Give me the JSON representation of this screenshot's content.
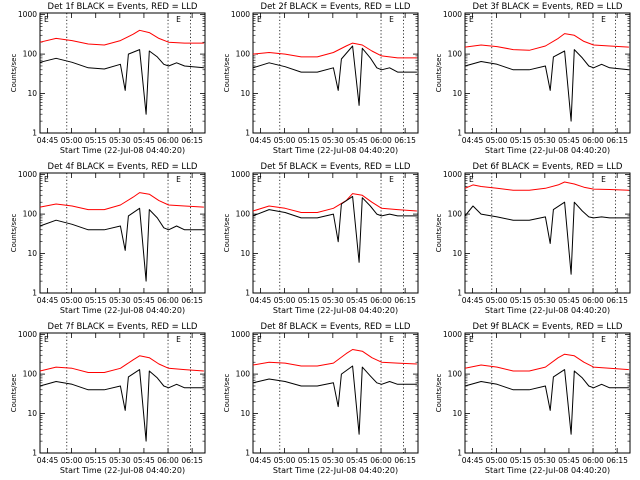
{
  "chart_data": {
    "type": "line",
    "shared": {
      "xlabel": "Start Time (22-Jul-08 04:40:20)",
      "ylabel": "Counts/sec",
      "x_ticks": [
        "04:45",
        "05:00",
        "05:15",
        "05:30",
        "05:45",
        "06:00",
        "06:15"
      ],
      "y_ticks": [
        "1",
        "10",
        "100",
        "1000"
      ],
      "y_scale": "log",
      "ylim": [
        1,
        1100
      ],
      "xlim": [
        "04:40:20",
        "06:23"
      ],
      "dotted_vlines": [
        "04:57",
        "06:00",
        "06:14"
      ],
      "marker_labels": [
        "E",
        "E"
      ],
      "series_colors": {
        "events": "#000000",
        "lld": "#ff0000"
      }
    },
    "panels": [
      {
        "title": "Det 1f BLACK = Events, RED = LLD",
        "events": [
          [
            0,
            62
          ],
          [
            10,
            78
          ],
          [
            20,
            62
          ],
          [
            30,
            45
          ],
          [
            40,
            42
          ],
          [
            50,
            55
          ],
          [
            53,
            12
          ],
          [
            55,
            100
          ],
          [
            62,
            130
          ],
          [
            66,
            3
          ],
          [
            68,
            120
          ],
          [
            73,
            85
          ],
          [
            77,
            55
          ],
          [
            80,
            50
          ],
          [
            85,
            60
          ],
          [
            90,
            50
          ],
          [
            102,
            45
          ]
        ],
        "lld": [
          [
            0,
            200
          ],
          [
            10,
            250
          ],
          [
            20,
            220
          ],
          [
            30,
            180
          ],
          [
            40,
            170
          ],
          [
            50,
            220
          ],
          [
            58,
            320
          ],
          [
            62,
            400
          ],
          [
            68,
            350
          ],
          [
            74,
            250
          ],
          [
            80,
            200
          ],
          [
            90,
            190
          ],
          [
            102,
            190
          ]
        ]
      },
      {
        "title": "Det 2f BLACK = Events, RED = LLD",
        "events": [
          [
            0,
            45
          ],
          [
            10,
            60
          ],
          [
            20,
            48
          ],
          [
            30,
            35
          ],
          [
            40,
            35
          ],
          [
            50,
            45
          ],
          [
            53,
            12
          ],
          [
            55,
            75
          ],
          [
            62,
            160
          ],
          [
            66,
            5
          ],
          [
            68,
            140
          ],
          [
            73,
            80
          ],
          [
            77,
            45
          ],
          [
            80,
            40
          ],
          [
            85,
            45
          ],
          [
            90,
            35
          ],
          [
            102,
            35
          ]
        ],
        "lld": [
          [
            0,
            100
          ],
          [
            10,
            110
          ],
          [
            20,
            100
          ],
          [
            30,
            85
          ],
          [
            40,
            85
          ],
          [
            50,
            110
          ],
          [
            58,
            160
          ],
          [
            62,
            190
          ],
          [
            68,
            170
          ],
          [
            74,
            120
          ],
          [
            80,
            90
          ],
          [
            90,
            80
          ],
          [
            102,
            80
          ]
        ]
      },
      {
        "title": "Det 3f BLACK = Events, RED = LLD",
        "events": [
          [
            0,
            50
          ],
          [
            10,
            65
          ],
          [
            20,
            55
          ],
          [
            30,
            40
          ],
          [
            40,
            40
          ],
          [
            50,
            50
          ],
          [
            53,
            12
          ],
          [
            55,
            85
          ],
          [
            62,
            120
          ],
          [
            66,
            2
          ],
          [
            68,
            130
          ],
          [
            73,
            80
          ],
          [
            77,
            50
          ],
          [
            80,
            45
          ],
          [
            85,
            55
          ],
          [
            90,
            45
          ],
          [
            102,
            40
          ]
        ],
        "lld": [
          [
            0,
            150
          ],
          [
            10,
            170
          ],
          [
            20,
            155
          ],
          [
            30,
            130
          ],
          [
            40,
            125
          ],
          [
            50,
            160
          ],
          [
            58,
            250
          ],
          [
            62,
            330
          ],
          [
            68,
            300
          ],
          [
            74,
            210
          ],
          [
            80,
            170
          ],
          [
            90,
            160
          ],
          [
            102,
            150
          ]
        ]
      },
      {
        "title": "Det 4f BLACK = Events, RED = LLD",
        "events": [
          [
            0,
            50
          ],
          [
            10,
            70
          ],
          [
            20,
            55
          ],
          [
            30,
            40
          ],
          [
            40,
            40
          ],
          [
            50,
            50
          ],
          [
            53,
            12
          ],
          [
            55,
            90
          ],
          [
            62,
            140
          ],
          [
            66,
            2
          ],
          [
            68,
            130
          ],
          [
            73,
            80
          ],
          [
            77,
            45
          ],
          [
            80,
            40
          ],
          [
            85,
            50
          ],
          [
            90,
            40
          ],
          [
            102,
            40
          ]
        ],
        "lld": [
          [
            0,
            150
          ],
          [
            10,
            180
          ],
          [
            20,
            160
          ],
          [
            30,
            130
          ],
          [
            40,
            130
          ],
          [
            50,
            170
          ],
          [
            58,
            270
          ],
          [
            62,
            350
          ],
          [
            68,
            320
          ],
          [
            74,
            220
          ],
          [
            80,
            170
          ],
          [
            90,
            160
          ],
          [
            102,
            150
          ]
        ]
      },
      {
        "title": "Det 5f BLACK = Events, RED = LLD",
        "events": [
          [
            0,
            90
          ],
          [
            10,
            130
          ],
          [
            20,
            110
          ],
          [
            30,
            80
          ],
          [
            40,
            80
          ],
          [
            50,
            100
          ],
          [
            53,
            20
          ],
          [
            55,
            180
          ],
          [
            62,
            280
          ],
          [
            66,
            6
          ],
          [
            68,
            260
          ],
          [
            73,
            160
          ],
          [
            77,
            100
          ],
          [
            80,
            90
          ],
          [
            85,
            100
          ],
          [
            90,
            90
          ],
          [
            102,
            90
          ]
        ],
        "lld": [
          [
            0,
            120
          ],
          [
            10,
            160
          ],
          [
            20,
            140
          ],
          [
            30,
            110
          ],
          [
            40,
            110
          ],
          [
            50,
            140
          ],
          [
            58,
            220
          ],
          [
            62,
            330
          ],
          [
            68,
            300
          ],
          [
            74,
            200
          ],
          [
            80,
            140
          ],
          [
            90,
            130
          ],
          [
            102,
            120
          ]
        ]
      },
      {
        "title": "Det 6f BLACK = Events, RED = LLD",
        "events": [
          [
            0,
            90
          ],
          [
            5,
            160
          ],
          [
            10,
            100
          ],
          [
            20,
            85
          ],
          [
            30,
            70
          ],
          [
            40,
            70
          ],
          [
            50,
            85
          ],
          [
            53,
            18
          ],
          [
            55,
            130
          ],
          [
            62,
            200
          ],
          [
            66,
            3
          ],
          [
            68,
            200
          ],
          [
            73,
            120
          ],
          [
            77,
            85
          ],
          [
            80,
            80
          ],
          [
            85,
            85
          ],
          [
            90,
            80
          ],
          [
            102,
            80
          ]
        ],
        "lld": [
          [
            0,
            450
          ],
          [
            5,
            550
          ],
          [
            10,
            500
          ],
          [
            20,
            450
          ],
          [
            30,
            400
          ],
          [
            40,
            400
          ],
          [
            50,
            450
          ],
          [
            58,
            550
          ],
          [
            62,
            650
          ],
          [
            68,
            580
          ],
          [
            74,
            480
          ],
          [
            80,
            430
          ],
          [
            90,
            420
          ],
          [
            102,
            400
          ]
        ]
      },
      {
        "title": "Det 7f BLACK = Events, RED = LLD",
        "events": [
          [
            0,
            50
          ],
          [
            10,
            65
          ],
          [
            20,
            55
          ],
          [
            30,
            40
          ],
          [
            40,
            40
          ],
          [
            50,
            50
          ],
          [
            53,
            12
          ],
          [
            55,
            85
          ],
          [
            62,
            130
          ],
          [
            66,
            2
          ],
          [
            68,
            120
          ],
          [
            73,
            80
          ],
          [
            77,
            50
          ],
          [
            80,
            45
          ],
          [
            85,
            55
          ],
          [
            90,
            45
          ],
          [
            102,
            45
          ]
        ],
        "lld": [
          [
            0,
            120
          ],
          [
            10,
            150
          ],
          [
            20,
            140
          ],
          [
            30,
            110
          ],
          [
            40,
            110
          ],
          [
            50,
            140
          ],
          [
            58,
            230
          ],
          [
            62,
            290
          ],
          [
            68,
            260
          ],
          [
            74,
            180
          ],
          [
            80,
            140
          ],
          [
            90,
            130
          ],
          [
            102,
            120
          ]
        ]
      },
      {
        "title": "Det 8f BLACK = Events, RED = LLD",
        "events": [
          [
            0,
            60
          ],
          [
            10,
            75
          ],
          [
            20,
            65
          ],
          [
            30,
            50
          ],
          [
            40,
            50
          ],
          [
            50,
            60
          ],
          [
            53,
            15
          ],
          [
            55,
            100
          ],
          [
            62,
            160
          ],
          [
            66,
            3
          ],
          [
            68,
            150
          ],
          [
            73,
            90
          ],
          [
            77,
            60
          ],
          [
            80,
            55
          ],
          [
            85,
            65
          ],
          [
            90,
            55
          ],
          [
            102,
            55
          ]
        ],
        "lld": [
          [
            0,
            170
          ],
          [
            10,
            200
          ],
          [
            20,
            190
          ],
          [
            30,
            160
          ],
          [
            40,
            160
          ],
          [
            50,
            190
          ],
          [
            58,
            330
          ],
          [
            62,
            420
          ],
          [
            68,
            380
          ],
          [
            74,
            260
          ],
          [
            80,
            200
          ],
          [
            90,
            190
          ],
          [
            102,
            180
          ]
        ]
      },
      {
        "title": "Det 9f BLACK = Events, RED = LLD",
        "events": [
          [
            0,
            50
          ],
          [
            10,
            65
          ],
          [
            20,
            55
          ],
          [
            30,
            40
          ],
          [
            40,
            40
          ],
          [
            50,
            50
          ],
          [
            53,
            12
          ],
          [
            55,
            85
          ],
          [
            62,
            130
          ],
          [
            66,
            3
          ],
          [
            68,
            120
          ],
          [
            73,
            80
          ],
          [
            77,
            50
          ],
          [
            80,
            45
          ],
          [
            85,
            55
          ],
          [
            90,
            45
          ],
          [
            102,
            45
          ]
        ],
        "lld": [
          [
            0,
            140
          ],
          [
            10,
            170
          ],
          [
            20,
            150
          ],
          [
            30,
            120
          ],
          [
            40,
            120
          ],
          [
            50,
            150
          ],
          [
            58,
            260
          ],
          [
            62,
            320
          ],
          [
            68,
            290
          ],
          [
            74,
            200
          ],
          [
            80,
            150
          ],
          [
            90,
            140
          ],
          [
            102,
            130
          ]
        ]
      }
    ]
  }
}
